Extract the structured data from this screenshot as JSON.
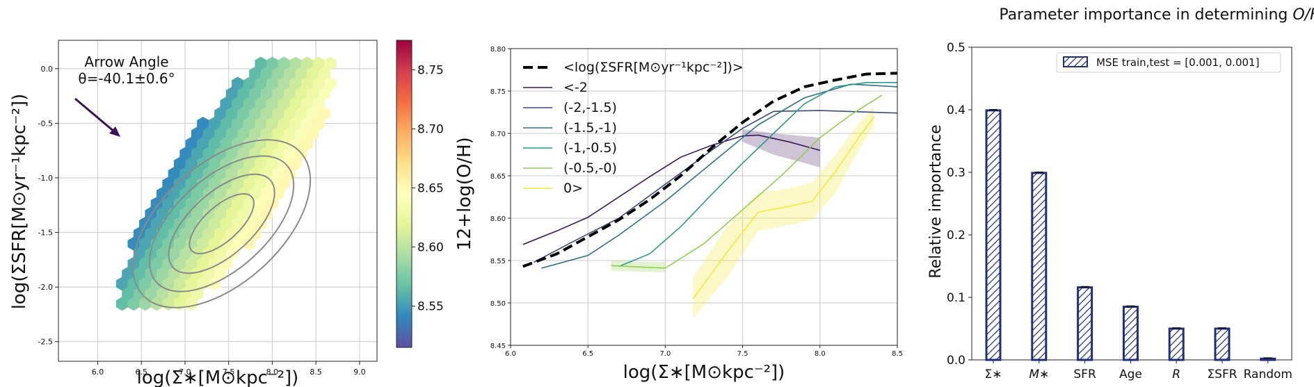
{
  "panels": [
    {
      "type": "hexbin",
      "xlabel": "log(Σ∗[M⊙kpc⁻²])",
      "ylabel": "log(ΣSFR[M⊙yr⁻¹kpc⁻²])",
      "xlim": [
        5.55,
        9.2
      ],
      "ylim": [
        -2.68,
        0.26
      ],
      "xticks": [
        "6.0",
        "6.5",
        "7.0",
        "7.5",
        "8.0",
        "8.5",
        "9.0"
      ],
      "yticks": [
        "0.0",
        "-0.5",
        "-1.0",
        "-1.5",
        "-2.0",
        "-2.5"
      ],
      "annotation_title": "Arrow Angle",
      "annotation_value": "θ=-40.1±0.6°",
      "arrow_angle_deg": -40.1,
      "colorbar": {
        "label": "12+log(O/H)",
        "vmin": 8.515,
        "vmax": 8.775,
        "ticks": [
          "8.75",
          "8.70",
          "8.65",
          "8.60",
          "8.55"
        ]
      },
      "contours": {
        "center": [
          7.42,
          -1.42
        ],
        "angle_deg": 48,
        "levels": 4
      }
    },
    {
      "type": "line",
      "xlabel": "log(Σ∗[M⊙kpc⁻²])",
      "xlim": [
        6.0,
        8.5
      ],
      "ylim": [
        8.45,
        8.8
      ],
      "xticks": [
        "6.0",
        "6.5",
        "7.0",
        "7.5",
        "8.0",
        "8.5"
      ],
      "yticks": [
        "8.80",
        "8.75",
        "8.70",
        "8.65",
        "8.60",
        "8.55",
        "8.50",
        "8.45"
      ],
      "series": [
        {
          "name": "<log(ΣSFR[M⊙yr⁻¹kpc⁻²])>",
          "color": "#000000",
          "dashed": true,
          "x": [
            6.08,
            6.3,
            6.5,
            6.7,
            6.9,
            7.1,
            7.3,
            7.5,
            7.7,
            7.9,
            8.1,
            8.3,
            8.5
          ],
          "y": [
            8.543,
            8.558,
            8.578,
            8.598,
            8.622,
            8.65,
            8.683,
            8.713,
            8.738,
            8.755,
            8.763,
            8.77,
            8.771
          ]
        },
        {
          "name": "<-2",
          "color": "#3b1357",
          "x": [
            6.08,
            6.3,
            6.5,
            6.7,
            6.9,
            7.1,
            7.3,
            7.5,
            7.6,
            7.8,
            8.0
          ],
          "y": [
            8.569,
            8.585,
            8.601,
            8.625,
            8.649,
            8.672,
            8.686,
            8.697,
            8.698,
            8.69,
            8.68
          ],
          "band": {
            "x": [
              7.5,
              7.7,
              8.0
            ],
            "lo": [
              8.69,
              8.675,
              8.66
            ],
            "hi": [
              8.705,
              8.7,
              8.695
            ]
          }
        },
        {
          "name": "(-2,-1.5)",
          "color": "#3a4a7d",
          "x": [
            6.15,
            6.4,
            6.7,
            7.0,
            7.3,
            7.5,
            7.7,
            8.0,
            8.5
          ],
          "y": [
            8.548,
            8.572,
            8.6,
            8.64,
            8.68,
            8.706,
            8.726,
            8.727,
            8.724
          ]
        },
        {
          "name": "(-1.5,-1)",
          "color": "#2c6f8c",
          "x": [
            6.2,
            6.5,
            6.7,
            7.0,
            7.3,
            7.6,
            7.9,
            8.2,
            8.5
          ],
          "y": [
            8.541,
            8.556,
            8.58,
            8.62,
            8.665,
            8.71,
            8.742,
            8.758,
            8.755
          ]
        },
        {
          "name": "(-1,-0.5)",
          "color": "#27998a",
          "x": [
            6.7,
            6.9,
            7.1,
            7.3,
            7.5,
            7.7,
            7.9,
            8.1,
            8.3,
            8.5
          ],
          "y": [
            8.543,
            8.558,
            8.59,
            8.628,
            8.665,
            8.7,
            8.735,
            8.755,
            8.76,
            8.76
          ]
        },
        {
          "name": "(-0.5,-0)",
          "color": "#8fd04d",
          "x": [
            6.65,
            7.0,
            7.25,
            7.5,
            7.75,
            8.0,
            8.2,
            8.4
          ],
          "y": [
            8.544,
            8.541,
            8.57,
            8.61,
            8.65,
            8.695,
            8.722,
            8.745
          ],
          "band": {
            "x": [
              6.65,
              7.0
            ],
            "lo": [
              8.538,
              8.536
            ],
            "hi": [
              8.55,
              8.548
            ]
          }
        },
        {
          "name": "0>",
          "color": "#f5e73a",
          "x": [
            7.18,
            7.4,
            7.6,
            7.8,
            7.95,
            8.1,
            8.25,
            8.35
          ],
          "y": [
            8.505,
            8.56,
            8.607,
            8.614,
            8.62,
            8.655,
            8.695,
            8.72
          ],
          "band": {
            "x": [
              7.18,
              7.4,
              7.6,
              7.8,
              7.95,
              8.1,
              8.25,
              8.35
            ],
            "lo": [
              8.482,
              8.53,
              8.585,
              8.592,
              8.598,
              8.63,
              8.68,
              8.708
            ],
            "hi": [
              8.53,
              8.59,
              8.63,
              8.635,
              8.642,
              8.675,
              8.712,
              8.732
            ]
          }
        }
      ]
    },
    {
      "type": "bar",
      "title": "Parameter importance in determining O/H",
      "title_plain": "Parameter importance in determining ",
      "title_italic": "O/H",
      "ylabel": "Relative importance",
      "legend": "MSE train,test = [0.001, 0.001]",
      "legend_position": "top-right",
      "ylim": [
        0,
        0.5
      ],
      "yticks": [
        "0.0",
        "0.1",
        "0.2",
        "0.3",
        "0.4",
        "0.5"
      ],
      "categories": [
        "Σ∗",
        "M∗",
        "SFR",
        "Age",
        "R",
        "ΣSFR",
        "Random"
      ],
      "values": [
        0.399,
        0.299,
        0.116,
        0.085,
        0.05,
        0.05,
        0.002
      ],
      "color": "#1f2f7a"
    }
  ]
}
